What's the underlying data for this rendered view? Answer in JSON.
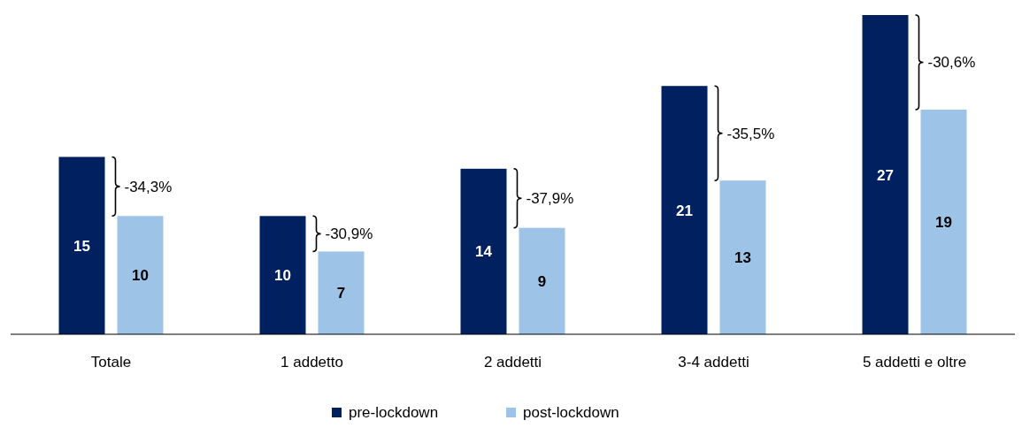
{
  "chart_data": {
    "type": "bar",
    "categories": [
      "Totale",
      "1 addetto",
      "2 addetti",
      "3-4 addetti",
      "5 addetti e oltre"
    ],
    "series": [
      {
        "name": "pre-lockdown",
        "color": "#002060",
        "values": [
          15,
          10,
          14,
          21,
          27
        ]
      },
      {
        "name": "post-lockdown",
        "color": "#9dc3e6",
        "values": [
          10,
          7,
          9,
          13,
          19
        ]
      }
    ],
    "ylim": [
      0,
      27
    ],
    "data_labels": true,
    "legend": "bottom",
    "annotations": [
      "-34,3%",
      "-30,9%",
      "-37,9%",
      "-35,5%",
      "-30,6%"
    ]
  }
}
